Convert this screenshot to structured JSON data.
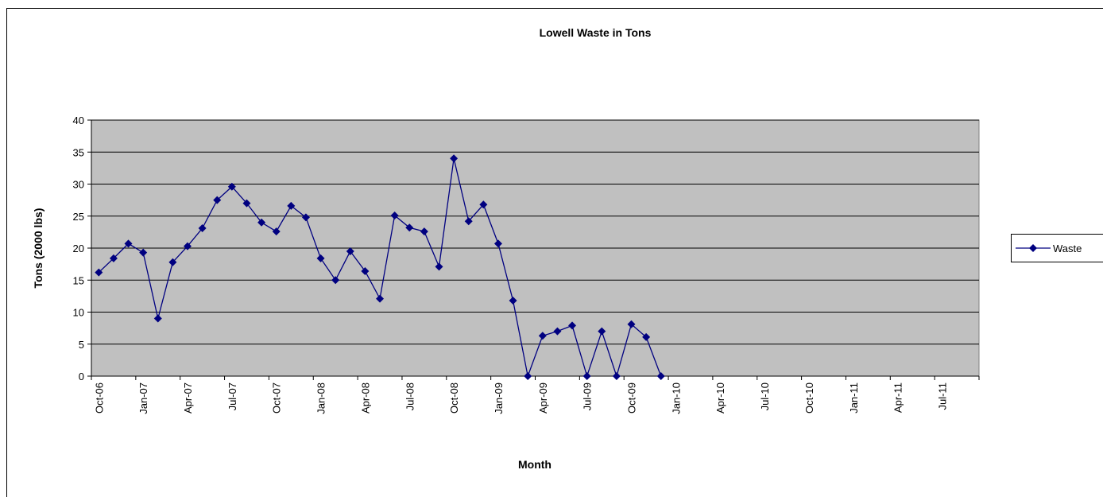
{
  "chart_data": {
    "type": "line",
    "title": "Lowell Waste in Tons",
    "x_label": "Month",
    "y_label": "Tons (2000 lbs)",
    "categories": [
      "Oct-06",
      null,
      null,
      "Jan-07",
      null,
      null,
      "Apr-07",
      null,
      null,
      "Jul-07",
      null,
      null,
      "Oct-07",
      null,
      null,
      "Jan-08",
      null,
      null,
      "Apr-08",
      null,
      null,
      "Jul-08",
      null,
      null,
      "Oct-08",
      null,
      null,
      "Jan-09",
      null,
      null,
      "Apr-09",
      null,
      null,
      "Jul-09",
      null,
      null,
      "Oct-09",
      null,
      null,
      "Jan-10",
      null,
      null,
      "Apr-10",
      null,
      null,
      "Jul-10",
      null,
      null,
      "Oct-10",
      null,
      null,
      "Jan-11",
      null,
      null,
      "Apr-11",
      null,
      null,
      "Jul-11",
      null,
      null
    ],
    "series": [
      {
        "name": "Waste",
        "color": "#000080",
        "values": [
          16.2,
          18.4,
          20.7,
          19.3,
          9,
          17.8,
          20.3,
          23.1,
          27.5,
          29.6,
          27,
          24,
          22.6,
          26.6,
          24.8,
          18.4,
          15,
          19.5,
          16.4,
          12.1,
          25.1,
          23.2,
          22.6,
          17.1,
          34,
          24.2,
          26.8,
          20.7,
          11.8,
          0,
          6.3,
          7,
          7.9,
          0,
          7,
          0,
          8.1,
          6.1,
          0,
          null,
          null,
          null,
          null,
          null,
          null,
          null,
          null,
          null,
          null,
          null,
          null,
          null,
          null,
          null,
          null,
          null,
          null,
          null,
          null,
          null
        ]
      }
    ],
    "ylim": [
      0,
      40
    ],
    "yticks": [
      0,
      5,
      10,
      15,
      20,
      25,
      30,
      35,
      40
    ],
    "grid": true,
    "legend": "right",
    "plot_background": "#c0c0c0"
  }
}
